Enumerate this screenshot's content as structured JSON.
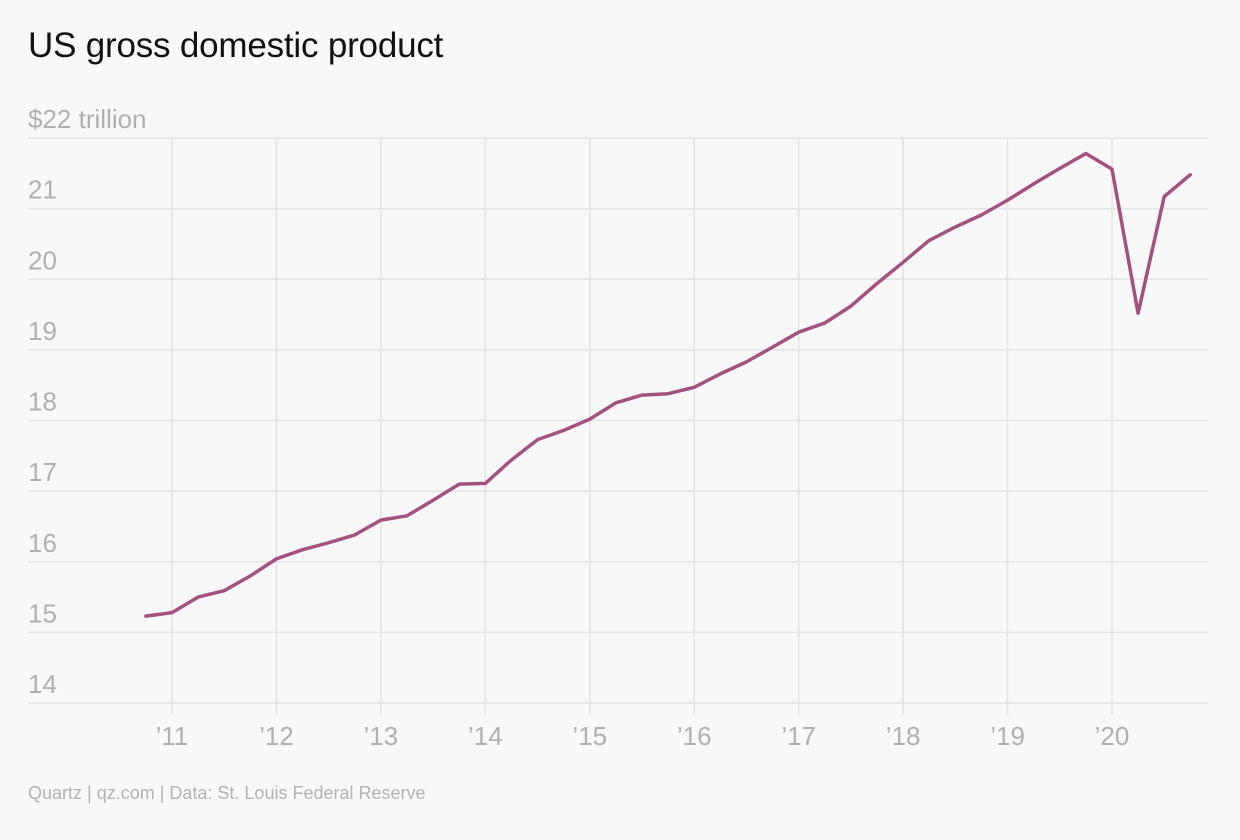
{
  "header": {
    "title": "US gross domestic product"
  },
  "footer": {
    "source": "Quartz | qz.com | Data: St. Louis Federal Reserve"
  },
  "colors": {
    "line": "#a3527f",
    "grid": "#e3e3e3",
    "tick_label": "#b0b0b0",
    "background": "#f8f8f8"
  },
  "chart_data": {
    "type": "line",
    "title": "US gross domestic product",
    "ylabel": "",
    "xlabel": "",
    "ylim": [
      14,
      22
    ],
    "xlim": [
      2010.0,
      2020.9
    ],
    "grid": true,
    "y_ticks": [
      14,
      15,
      16,
      17,
      18,
      19,
      20,
      21,
      22
    ],
    "y_tick_labels": [
      "14",
      "15",
      "16",
      "17",
      "18",
      "19",
      "20",
      "21",
      "$22 trillion"
    ],
    "x_ticks": [
      2011,
      2012,
      2013,
      2014,
      2015,
      2016,
      2017,
      2018,
      2019,
      2020
    ],
    "x_tick_labels": [
      "’11",
      "’12",
      "’13",
      "’14",
      "’15",
      "’16",
      "’17",
      "’18",
      "’19",
      "’20"
    ],
    "series": [
      {
        "x": [
          2010.75,
          2011.0,
          2011.25,
          2011.5,
          2011.75,
          2012.0,
          2012.25,
          2012.5,
          2012.75,
          2013.0,
          2013.25,
          2013.5,
          2013.75,
          2014.0,
          2014.25,
          2014.5,
          2014.75,
          2015.0,
          2015.25,
          2015.5,
          2015.75,
          2016.0,
          2016.25,
          2016.5,
          2016.75,
          2017.0,
          2017.25,
          2017.5,
          2017.75,
          2018.0,
          2018.25,
          2018.5,
          2018.75,
          2019.0,
          2019.25,
          2019.5,
          2019.75,
          2020.0,
          2020.25,
          2020.5,
          2020.75
        ],
        "values": [
          15.23,
          15.28,
          15.5,
          15.59,
          15.8,
          16.04,
          16.17,
          16.27,
          16.38,
          16.59,
          16.65,
          16.87,
          17.1,
          17.11,
          17.44,
          17.73,
          17.86,
          18.02,
          18.25,
          18.36,
          18.38,
          18.47,
          18.66,
          18.83,
          19.04,
          19.25,
          19.38,
          19.62,
          19.94,
          20.24,
          20.55,
          20.74,
          20.91,
          21.12,
          21.35,
          21.57,
          21.78,
          21.56,
          19.52,
          21.17,
          21.48
        ]
      }
    ]
  }
}
